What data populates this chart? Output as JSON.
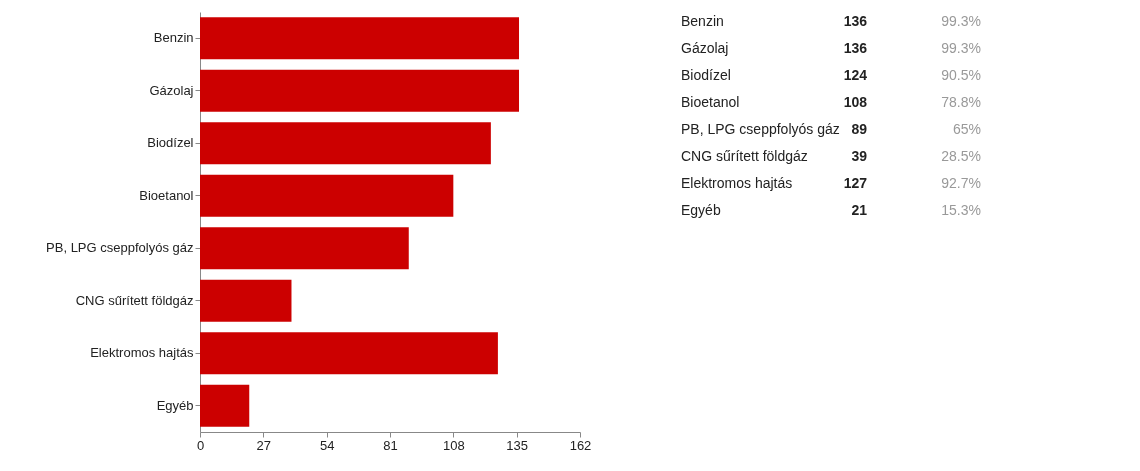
{
  "chart_data": [
    {
      "type": "bar",
      "orientation": "horizontal",
      "categories": [
        "Benzin",
        "Gázolaj",
        "Biodízel",
        "Bioetanol",
        "PB, LPG cseppfolyós gáz",
        "CNG sűrített földgáz",
        "Elektromos hajtás",
        "Egyéb"
      ],
      "values": [
        136,
        136,
        124,
        108,
        89,
        39,
        127,
        21
      ],
      "color": "#cc0000",
      "xlim": [
        0,
        162
      ],
      "xticks": [
        0,
        27,
        54,
        81,
        108,
        135,
        162
      ],
      "grid": false
    },
    {
      "type": "other",
      "categories": [
        "Benzin",
        "Gázolaj",
        "Biodízel",
        "Bioetanol",
        "PB, LPG cseppfolyós gáz",
        "CNG sűrített földgáz",
        "Elektromos hajtás",
        "Egyéb"
      ],
      "values": [
        136,
        136,
        124,
        108,
        89,
        39,
        127,
        21
      ],
      "data_labels": true,
      "annotations": [
        "99.3%",
        "99.3%",
        "90.5%",
        "78.8%",
        "65%",
        "28.5%",
        "92.7%",
        "15.3%"
      ]
    }
  ]
}
